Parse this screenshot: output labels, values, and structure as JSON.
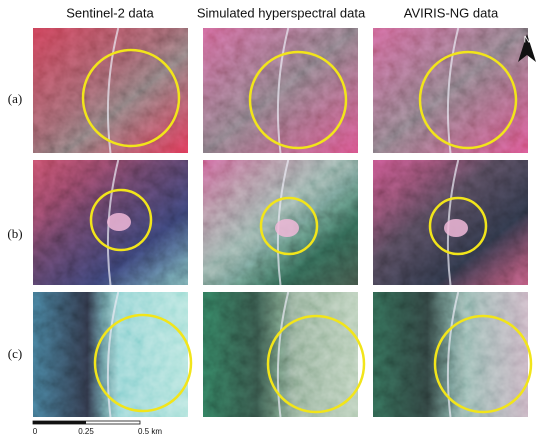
{
  "columns": [
    "Sentinel-2 data",
    "Simulated hyperspectral data",
    "AVIRIS-NG data"
  ],
  "rows": [
    "(a)",
    "(b)",
    "(c)"
  ],
  "north_label": "N",
  "scale_bar": {
    "labels": [
      "0",
      "0.25",
      "0.5 km"
    ]
  }
}
